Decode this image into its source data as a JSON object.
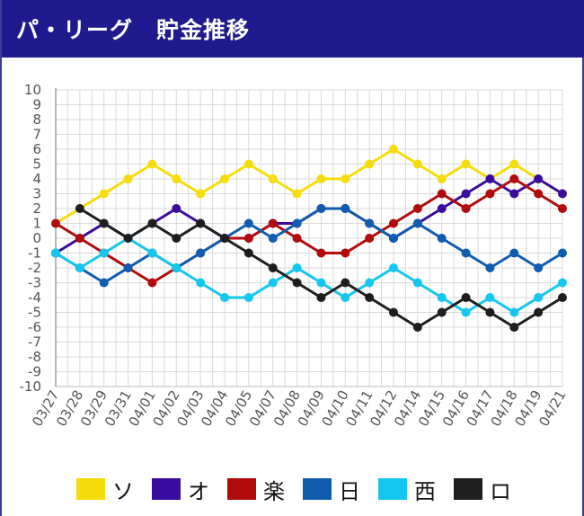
{
  "header": {
    "title": "パ・リーグ　貯金推移"
  },
  "chart_data": {
    "type": "line",
    "title": "パ・リーグ　貯金推移",
    "categories": [
      "03/27",
      "03/28",
      "03/29",
      "03/31",
      "04/01",
      "04/02",
      "04/03",
      "04/04",
      "04/05",
      "04/07",
      "04/08",
      "04/09",
      "04/10",
      "04/11",
      "04/12",
      "04/14",
      "04/15",
      "04/16",
      "04/17",
      "04/18",
      "04/19",
      "04/21"
    ],
    "ylim": [
      -10,
      10
    ],
    "yticks": [
      10,
      9,
      8,
      7,
      6,
      5,
      4,
      3,
      2,
      1,
      0,
      -1,
      -2,
      -3,
      -4,
      -5,
      -6,
      -7,
      -8,
      -9,
      -10
    ],
    "grid": true,
    "legend_position": "bottom",
    "series": [
      {
        "name": "ソ",
        "color": "#f5dc0a",
        "values": [
          1,
          2,
          3,
          4,
          5,
          4,
          3,
          4,
          5,
          4,
          3,
          4,
          4,
          5,
          6,
          5,
          4,
          5,
          4,
          5,
          4,
          3
        ]
      },
      {
        "name": "オ",
        "color": "#3a0c9e",
        "values": [
          -1,
          0,
          1,
          0,
          1,
          2,
          1,
          0,
          0,
          1,
          1,
          2,
          2,
          1,
          0,
          1,
          2,
          3,
          4,
          3,
          4,
          3
        ]
      },
      {
        "name": "楽",
        "color": "#b10b0b",
        "values": [
          1,
          0,
          -1,
          -2,
          -3,
          -2,
          -1,
          0,
          0,
          1,
          0,
          -1,
          -1,
          0,
          1,
          2,
          3,
          2,
          3,
          4,
          3,
          2
        ]
      },
      {
        "name": "日",
        "color": "#0f5cb0",
        "values": [
          -1,
          -2,
          -3,
          -2,
          -1,
          -2,
          -1,
          0,
          1,
          0,
          1,
          2,
          2,
          1,
          0,
          1,
          0,
          -1,
          -2,
          -1,
          -2,
          -1
        ]
      },
      {
        "name": "西",
        "color": "#14c6f0",
        "values": [
          -1,
          -2,
          -1,
          0,
          -1,
          -2,
          -3,
          -4,
          -4,
          -3,
          -2,
          -3,
          -4,
          -3,
          -2,
          -3,
          -4,
          -5,
          -4,
          -5,
          -4,
          -3
        ]
      },
      {
        "name": "ロ",
        "color": "#1e1e1e",
        "values": [
          null,
          2,
          1,
          0,
          1,
          0,
          1,
          0,
          -1,
          -2,
          -3,
          -4,
          -3,
          -4,
          -5,
          -6,
          -5,
          -4,
          -5,
          -6,
          -5,
          -4
        ]
      }
    ]
  }
}
